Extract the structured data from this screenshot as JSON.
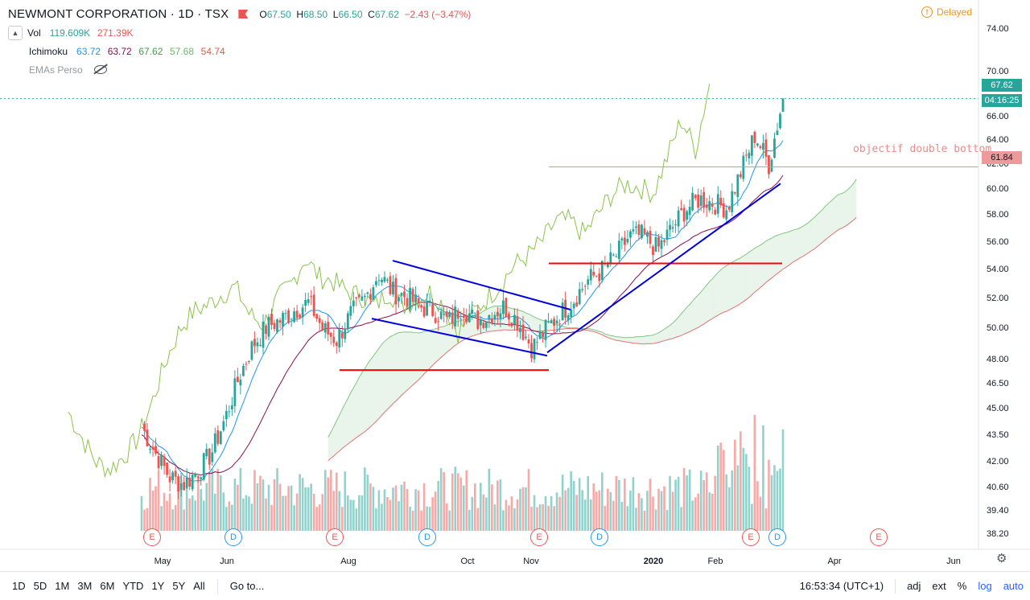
{
  "header": {
    "symbol": "NEWMONT CORPORATION · 1D · TSX",
    "ohlc": {
      "o_label": "O",
      "o": "67.50",
      "h_label": "H",
      "h": "68.50",
      "l_label": "L",
      "l": "66.50",
      "c_label": "C",
      "c": "67.62",
      "change": "−2.43 (−3.47%)"
    },
    "delayed": "Delayed"
  },
  "indicators": [
    {
      "name": "Vol",
      "values": [
        "119.609K",
        "271.39K"
      ],
      "colors": [
        "#26a69a",
        "#ef5350"
      ]
    },
    {
      "name": "Ichimoku",
      "values": [
        "63.72",
        "63.72",
        "67.62",
        "57.68",
        "54.74"
      ],
      "colors": [
        "#2196f3",
        "#880e4f",
        "#43a047",
        "#66bb6a",
        "#ef5350"
      ]
    },
    {
      "name": "EMAs Perso",
      "values": [],
      "colors": []
    }
  ],
  "price_axis": {
    "labels": [
      "74.00",
      "70.00",
      "66.00",
      "64.00",
      "62.00",
      "60.00",
      "58.00",
      "56.00",
      "54.00",
      "52.00",
      "50.00",
      "48.00",
      "46.50",
      "45.00",
      "43.50",
      "42.00",
      "40.60",
      "39.40",
      "38.20"
    ],
    "last_price": "67.62",
    "countdown": "04:16:25",
    "target_price": "61.84"
  },
  "time_axis": {
    "labels": [
      "May",
      "Jun",
      "Aug",
      "Oct",
      "Nov",
      "2020",
      "Feb",
      "Apr",
      "Jun"
    ]
  },
  "events": [
    "E",
    "D",
    "E",
    "D",
    "E",
    "D",
    "E",
    "D",
    "E"
  ],
  "annotation": {
    "target_text": "objectif double bottom"
  },
  "bottom_bar": {
    "timeframes": [
      "1D",
      "5D",
      "1M",
      "3M",
      "6M",
      "YTD",
      "1Y",
      "5Y",
      "All"
    ],
    "goto": "Go to...",
    "clock": "16:53:34 (UTC+1)",
    "controls": [
      "adj",
      "ext",
      "%",
      "log",
      "auto"
    ]
  },
  "colors": {
    "up": "#26a69a",
    "down": "#ef5350",
    "tenkan": "#2196f3",
    "kijun": "#880e4f",
    "chikou": "#43a047",
    "trend": "#0000dd",
    "level": "#ff0000"
  },
  "chart_data": {
    "type": "candlestick",
    "title": "NEWMONT CORPORATION · 1D · TSX",
    "y_scale": "log",
    "ylim": [
      37.8,
      75.5
    ],
    "close_series_approx": [
      {
        "x": "2019-04-26",
        "close": 44.0
      },
      {
        "x": "2019-05-03",
        "close": 42.5
      },
      {
        "x": "2019-05-10",
        "close": 41.2
      },
      {
        "x": "2019-05-17",
        "close": 40.8
      },
      {
        "x": "2019-05-24",
        "close": 41.5
      },
      {
        "x": "2019-05-31",
        "close": 42.5
      },
      {
        "x": "2019-06-07",
        "close": 44.5
      },
      {
        "x": "2019-06-14",
        "close": 47.0
      },
      {
        "x": "2019-06-21",
        "close": 49.0
      },
      {
        "x": "2019-06-28",
        "close": 50.2
      },
      {
        "x": "2019-07-05",
        "close": 50.6
      },
      {
        "x": "2019-07-12",
        "close": 51.3
      },
      {
        "x": "2019-07-19",
        "close": 51.8
      },
      {
        "x": "2019-07-26",
        "close": 50.0
      },
      {
        "x": "2019-08-02",
        "close": 49.3
      },
      {
        "x": "2019-08-09",
        "close": 51.0
      },
      {
        "x": "2019-08-16",
        "close": 52.0
      },
      {
        "x": "2019-08-23",
        "close": 53.8
      },
      {
        "x": "2019-08-30",
        "close": 52.5
      },
      {
        "x": "2019-09-06",
        "close": 52.2
      },
      {
        "x": "2019-09-13",
        "close": 51.5
      },
      {
        "x": "2019-09-20",
        "close": 51.2
      },
      {
        "x": "2019-09-27",
        "close": 50.5
      },
      {
        "x": "2019-10-04",
        "close": 51.5
      },
      {
        "x": "2019-10-11",
        "close": 50.5
      },
      {
        "x": "2019-10-18",
        "close": 51.0
      },
      {
        "x": "2019-10-25",
        "close": 51.5
      },
      {
        "x": "2019-11-01",
        "close": 50.5
      },
      {
        "x": "2019-11-08",
        "close": 48.8
      },
      {
        "x": "2019-11-15",
        "close": 50.0
      },
      {
        "x": "2019-11-22",
        "close": 51.0
      },
      {
        "x": "2019-11-29",
        "close": 52.0
      },
      {
        "x": "2019-12-06",
        "close": 53.3
      },
      {
        "x": "2019-12-13",
        "close": 54.0
      },
      {
        "x": "2019-12-20",
        "close": 55.0
      },
      {
        "x": "2019-12-27",
        "close": 56.5
      },
      {
        "x": "2020-01-03",
        "close": 56.5
      },
      {
        "x": "2020-01-10",
        "close": 55.5
      },
      {
        "x": "2020-01-17",
        "close": 57.0
      },
      {
        "x": "2020-01-24",
        "close": 58.5
      },
      {
        "x": "2020-01-31",
        "close": 59.3
      },
      {
        "x": "2020-02-07",
        "close": 59.0
      },
      {
        "x": "2020-02-14",
        "close": 58.6
      },
      {
        "x": "2020-02-21",
        "close": 61.5
      },
      {
        "x": "2020-02-28",
        "close": 64.5
      },
      {
        "x": "2020-03-06",
        "close": 62.0
      },
      {
        "x": "2020-03-13",
        "close": 67.62
      }
    ],
    "annotations": [
      {
        "type": "horizontal",
        "price": 47.4,
        "color": "red",
        "label": ""
      },
      {
        "type": "horizontal",
        "price": 54.5,
        "color": "red",
        "label": ""
      },
      {
        "type": "horizontal",
        "price": 61.84,
        "color": "light-red",
        "label": "objectif double bottom"
      }
    ]
  }
}
